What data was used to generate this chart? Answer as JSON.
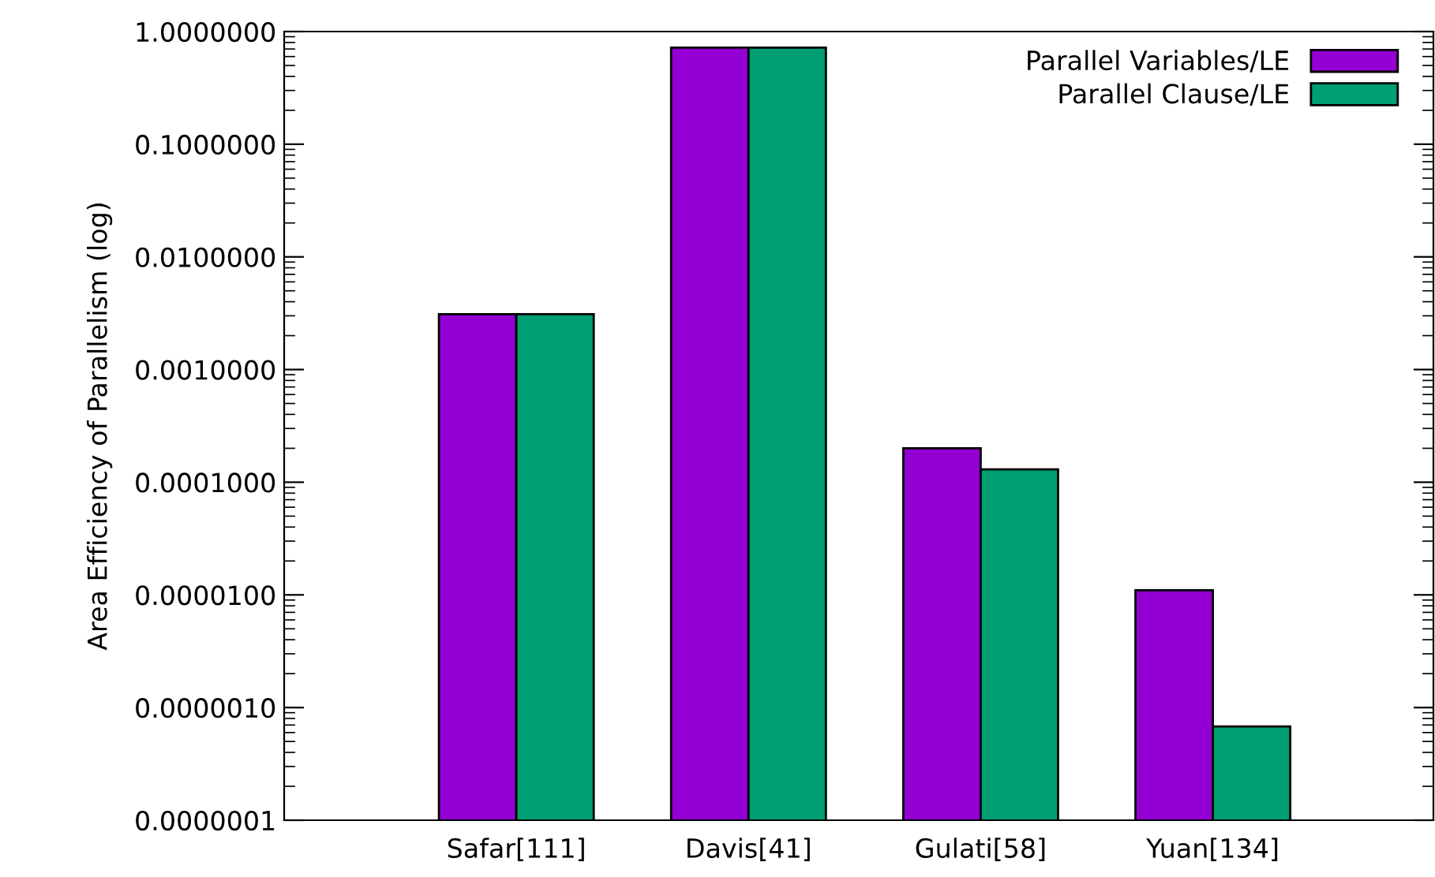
{
  "chart_data": {
    "type": "bar",
    "ylabel": "Area Efficiency of Parallelism (log)",
    "categories": [
      "Safar[111]",
      "Davis[41]",
      "Gulati[58]",
      "Yuan[134]"
    ],
    "series": [
      {
        "name": "Parallel Variables/LE",
        "color": "#9400d3",
        "values": [
          0.0031,
          0.72,
          0.0002,
          1.1e-05
        ]
      },
      {
        "name": "Parallel Clause/LE",
        "color": "#009e73",
        "values": [
          0.0031,
          0.72,
          0.00013,
          6.8e-07
        ]
      }
    ],
    "log": "y",
    "ylim": [
      1e-07,
      1
    ],
    "yticks": [
      {
        "value": 1e-07,
        "label": "0.0000001"
      },
      {
        "value": 1e-06,
        "label": "0.0000010"
      },
      {
        "value": 1e-05,
        "label": "0.0000100"
      },
      {
        "value": 0.0001,
        "label": "0.0001000"
      },
      {
        "value": 0.001,
        "label": "0.0010000"
      },
      {
        "value": 0.01,
        "label": "0.0100000"
      },
      {
        "value": 0.1,
        "label": "0.1000000"
      },
      {
        "value": 1,
        "label": "1.0000000"
      }
    ],
    "grid": false,
    "legend": "top right"
  }
}
